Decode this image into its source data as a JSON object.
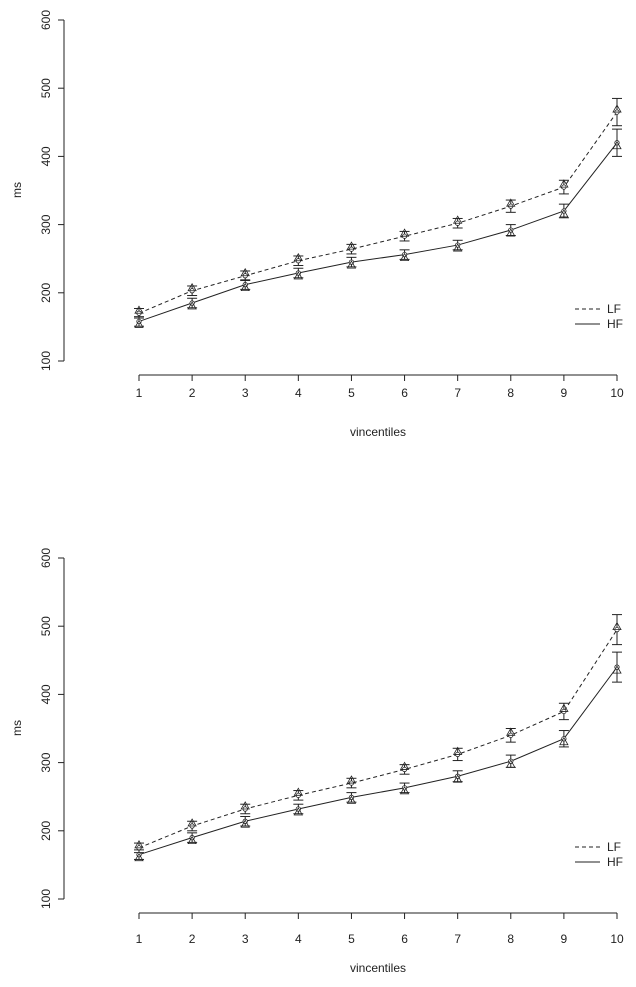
{
  "chart_data": [
    {
      "type": "line",
      "title": "",
      "xlabel": "vincentiles",
      "ylabel": "ms",
      "ylim": [
        100,
        600
      ],
      "yticks": [
        "100",
        "200",
        "300",
        "400",
        "500",
        "600"
      ],
      "categories": [
        "1",
        "2",
        "3",
        "4",
        "5",
        "6",
        "7",
        "8",
        "9",
        "10"
      ],
      "legend_position": "bottom-right",
      "grid": false,
      "error_bars": true,
      "series": [
        {
          "name": "LF",
          "line_style": "dashed",
          "values": [
            170,
            203,
            225,
            247,
            264,
            283,
            302,
            327,
            355,
            465
          ],
          "err": [
            7,
            7,
            7,
            7,
            7,
            7,
            7,
            9,
            10,
            20
          ]
        },
        {
          "name": "HF",
          "line_style": "solid",
          "values": [
            158,
            185,
            212,
            229,
            245,
            256,
            270,
            292,
            320,
            420
          ],
          "err": [
            7,
            7,
            7,
            7,
            7,
            7,
            7,
            8,
            10,
            20
          ]
        }
      ]
    },
    {
      "type": "line",
      "title": "",
      "xlabel": "vincentiles",
      "ylabel": "ms",
      "ylim": [
        100,
        600
      ],
      "yticks": [
        "100",
        "200",
        "300",
        "400",
        "500",
        "600"
      ],
      "categories": [
        "1",
        "2",
        "3",
        "4",
        "5",
        "6",
        "7",
        "8",
        "9",
        "10"
      ],
      "legend_position": "bottom-right",
      "grid": false,
      "error_bars": true,
      "series": [
        {
          "name": "LF",
          "line_style": "dashed",
          "values": [
            175,
            207,
            232,
            252,
            270,
            290,
            312,
            340,
            375,
            495
          ],
          "err": [
            7,
            7,
            7,
            7,
            7,
            7,
            9,
            10,
            12,
            22
          ]
        },
        {
          "name": "HF",
          "line_style": "solid",
          "values": [
            165,
            190,
            214,
            232,
            249,
            263,
            280,
            302,
            335,
            440
          ],
          "err": [
            7,
            7,
            7,
            7,
            7,
            7,
            8,
            9,
            12,
            22
          ]
        }
      ]
    }
  ],
  "charts": [
    {
      "ylabel": "ms",
      "xlabel": "vincentiles",
      "legend": [
        {
          "label": "LF"
        },
        {
          "label": "HF"
        }
      ]
    },
    {
      "ylabel": "ms",
      "xlabel": "vincentiles",
      "legend": [
        {
          "label": "LF"
        },
        {
          "label": "HF"
        }
      ]
    }
  ]
}
